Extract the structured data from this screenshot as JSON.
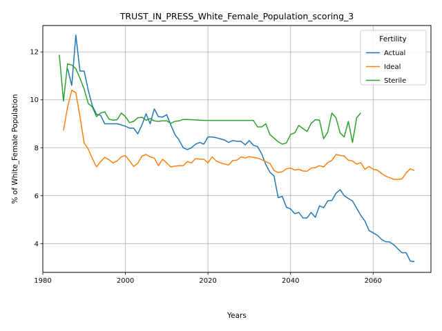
{
  "chart_data": {
    "type": "line",
    "title": "TRUST_IN_PRESS_White_Female_Population_scoring_3",
    "xlabel": "Years",
    "ylabel": "% of White_Female Population",
    "xlim": [
      1980,
      2074
    ],
    "ylim": [
      2.8,
      13.1
    ],
    "xticks": [
      1980,
      2000,
      2020,
      2040,
      2060
    ],
    "yticks": [
      4,
      6,
      8,
      10,
      12
    ],
    "grid": true,
    "legend": {
      "title": "Fertility",
      "placement": "top-right"
    },
    "series": [
      {
        "name": "Actual",
        "color": "#1f77b4",
        "x": [
          1986,
          1987,
          1988,
          1989,
          1990,
          1991,
          1992,
          1993,
          1994,
          1995,
          1996,
          1997,
          1998,
          1999,
          2000,
          2001,
          2002,
          2003,
          2004,
          2005,
          2006,
          2007,
          2008,
          2009,
          2010,
          2011,
          2012,
          2013,
          2014,
          2015,
          2016,
          2017,
          2018,
          2019,
          2020,
          2021,
          2022,
          2023,
          2024,
          2025,
          2026,
          2027,
          2028,
          2029,
          2030,
          2031,
          2032,
          2033,
          2034,
          2035,
          2036,
          2037,
          2038,
          2039,
          2040,
          2041,
          2042,
          2043,
          2044,
          2045,
          2046,
          2047,
          2048,
          2049,
          2050,
          2051,
          2052,
          2053,
          2054,
          2055,
          2056,
          2057,
          2058,
          2059,
          2060,
          2061,
          2062,
          2063,
          2064,
          2065,
          2066,
          2067,
          2068,
          2069,
          2070
        ],
        "y": [
          11.3,
          10.6,
          12.7,
          11.2,
          11.2,
          10.4,
          9.75,
          9.4,
          9.35,
          9.0,
          9.0,
          9.0,
          9.0,
          8.95,
          8.9,
          8.82,
          8.82,
          8.58,
          8.95,
          9.42,
          9.0,
          9.62,
          9.3,
          9.28,
          9.38,
          8.95,
          8.55,
          8.32,
          8.0,
          7.92,
          8.0,
          8.15,
          8.22,
          8.15,
          8.45,
          8.45,
          8.42,
          8.37,
          8.32,
          8.22,
          8.3,
          8.27,
          8.27,
          8.12,
          8.3,
          8.1,
          8.05,
          7.75,
          7.3,
          6.98,
          6.82,
          5.92,
          5.97,
          5.52,
          5.45,
          5.25,
          5.3,
          5.07,
          5.07,
          5.3,
          5.1,
          5.58,
          5.5,
          5.78,
          5.8,
          6.1,
          6.25,
          6.0,
          5.88,
          5.78,
          5.48,
          5.18,
          4.95,
          4.55,
          4.45,
          4.35,
          4.18,
          4.08,
          4.07,
          3.95,
          3.78,
          3.62,
          3.62,
          3.27,
          3.25
        ]
      },
      {
        "name": "Ideal",
        "color": "#ff7f0e",
        "x": [
          1985,
          1986,
          1987,
          1988,
          1989,
          1990,
          1991,
          1992,
          1993,
          1994,
          1995,
          1996,
          1997,
          1998,
          1999,
          2000,
          2001,
          2002,
          2003,
          2004,
          2005,
          2006,
          2007,
          2008,
          2009,
          2010,
          2011,
          2012,
          2013,
          2014,
          2015,
          2016,
          2017,
          2018,
          2019,
          2020,
          2021,
          2022,
          2023,
          2024,
          2025,
          2026,
          2027,
          2028,
          2029,
          2030,
          2031,
          2032,
          2033,
          2034,
          2035,
          2036,
          2037,
          2038,
          2039,
          2040,
          2041,
          2042,
          2043,
          2044,
          2045,
          2046,
          2047,
          2048,
          2049,
          2050,
          2051,
          2052,
          2053,
          2054,
          2055,
          2056,
          2057,
          2058,
          2059,
          2060,
          2061,
          2062,
          2063,
          2064,
          2065,
          2066,
          2067,
          2068,
          2069,
          2070
        ],
        "y": [
          8.72,
          9.7,
          10.4,
          10.3,
          9.3,
          8.2,
          7.95,
          7.55,
          7.2,
          7.42,
          7.6,
          7.5,
          7.37,
          7.45,
          7.62,
          7.68,
          7.45,
          7.22,
          7.35,
          7.65,
          7.72,
          7.62,
          7.57,
          7.25,
          7.52,
          7.37,
          7.2,
          7.23,
          7.25,
          7.25,
          7.42,
          7.37,
          7.55,
          7.52,
          7.52,
          7.37,
          7.62,
          7.45,
          7.37,
          7.32,
          7.28,
          7.47,
          7.48,
          7.62,
          7.57,
          7.63,
          7.6,
          7.57,
          7.5,
          7.42,
          7.35,
          7.05,
          6.97,
          7.0,
          7.12,
          7.15,
          7.07,
          7.1,
          7.03,
          7.02,
          7.15,
          7.17,
          7.25,
          7.2,
          7.38,
          7.47,
          7.72,
          7.68,
          7.65,
          7.48,
          7.45,
          7.32,
          7.38,
          7.1,
          7.22,
          7.1,
          7.07,
          6.93,
          6.82,
          6.75,
          6.68,
          6.68,
          6.7,
          6.95,
          7.12,
          7.05
        ]
      },
      {
        "name": "Sterile",
        "color": "#2ca02c",
        "x": [
          1984,
          1985,
          1986,
          1987,
          1988,
          1989,
          1990,
          1991,
          1992,
          1993,
          1994,
          1995,
          1996,
          1997,
          1998,
          1999,
          2000,
          2001,
          2002,
          2003,
          2004,
          2005,
          2006,
          2007,
          2008,
          2009,
          2010,
          2011,
          2012,
          2013,
          2014,
          2015,
          2016,
          2017,
          2018,
          2019,
          2020,
          2021,
          2022,
          2023,
          2024,
          2025,
          2026,
          2027,
          2028,
          2029,
          2030,
          2031,
          2032,
          2033,
          2034,
          2035,
          2036,
          2037,
          2038,
          2039,
          2040,
          2041,
          2042,
          2043,
          2044,
          2045,
          2046,
          2047,
          2048,
          2049,
          2050,
          2051,
          2052,
          2053,
          2054,
          2055,
          2056,
          2057
        ],
        "y": [
          11.88,
          9.95,
          11.5,
          11.45,
          11.3,
          10.9,
          10.45,
          9.85,
          9.7,
          9.3,
          9.45,
          9.5,
          9.2,
          9.15,
          9.17,
          9.45,
          9.3,
          9.05,
          9.1,
          9.25,
          9.27,
          9.15,
          9.22,
          9.12,
          9.1,
          9.12,
          9.12,
          9.02,
          9.1,
          9.12,
          9.18,
          9.18,
          9.17,
          9.16,
          9.15,
          9.14,
          9.14,
          9.14,
          9.14,
          9.14,
          9.14,
          9.14,
          9.14,
          9.14,
          9.14,
          9.14,
          9.14,
          9.14,
          8.87,
          8.87,
          9.0,
          8.55,
          8.4,
          8.25,
          8.15,
          8.2,
          8.55,
          8.62,
          8.93,
          8.8,
          8.68,
          9.02,
          9.17,
          9.15,
          8.38,
          8.65,
          9.45,
          9.25,
          8.62,
          8.45,
          9.1,
          8.22,
          9.25,
          9.45
        ]
      }
    ]
  }
}
